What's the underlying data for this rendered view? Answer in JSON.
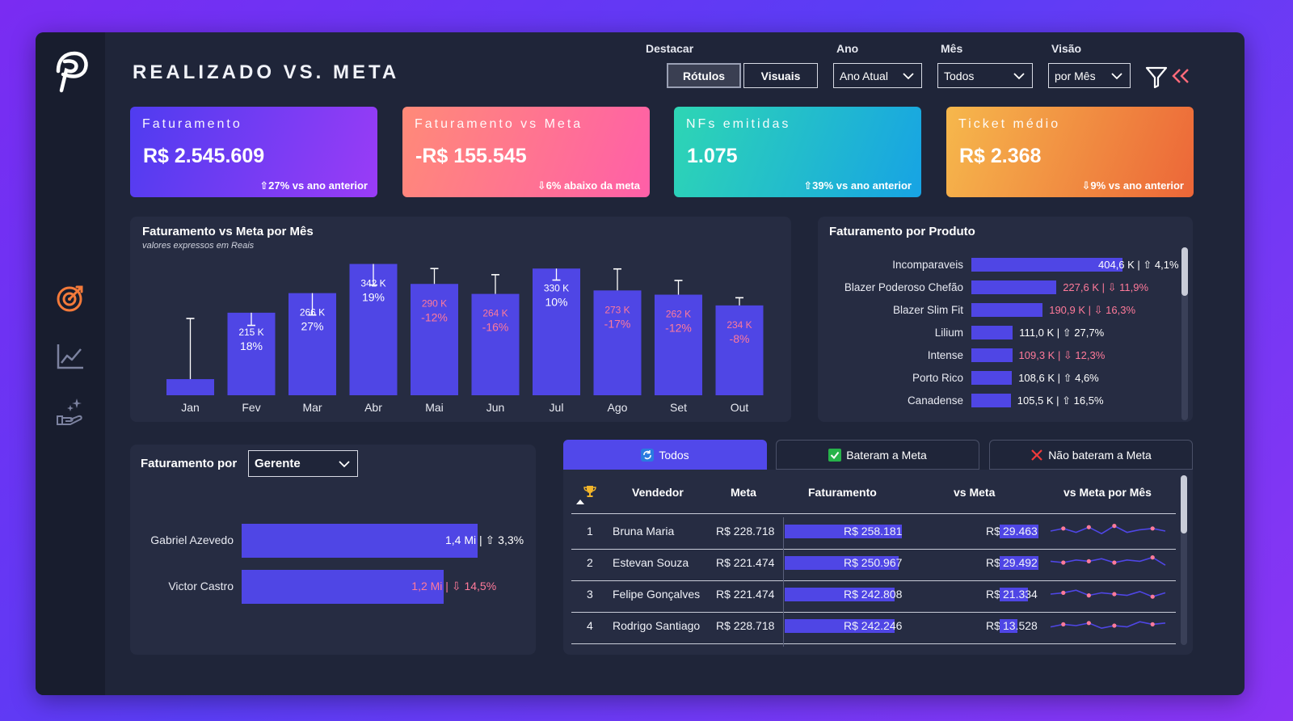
{
  "title": "REALIZADO VS. META",
  "filters": {
    "destacar_label": "Destacar",
    "rotulos": "Rótulos",
    "visuais": "Visuais",
    "ano_label": "Ano",
    "ano_value": "Ano Atual",
    "mes_label": "Mês",
    "mes_value": "Todos",
    "visao_label": "Visão",
    "visao_value": "por Mês"
  },
  "kpis": [
    {
      "title": "Faturamento",
      "value": "R$ 2.545.609",
      "sub": "⇧27% vs ano anterior"
    },
    {
      "title": "Faturamento vs Meta",
      "value": "-R$ 155.545",
      "sub": "⇩6% abaixo da meta"
    },
    {
      "title": "NFs emitidas",
      "value": "1.075",
      "sub": "⇧39% vs ano anterior"
    },
    {
      "title": "Ticket médio",
      "value": "R$ 2.368",
      "sub": "⇩9% vs ano anterior"
    }
  ],
  "monthly": {
    "title": "Faturamento vs Meta por Mês",
    "subtitle": "valores expressos em Reais"
  },
  "chart_data": {
    "type": "bar",
    "title": "Faturamento vs Meta por Mês",
    "categories": [
      "Jan",
      "Fev",
      "Mar",
      "Abr",
      "Mai",
      "Jun",
      "Jul",
      "Ago",
      "Set",
      "Out"
    ],
    "values": [
      42,
      215,
      266,
      342,
      290,
      264,
      330,
      273,
      262,
      234
    ],
    "meta": [
      200,
      182,
      209,
      287,
      330,
      314,
      300,
      329,
      299,
      254
    ],
    "labels": [
      "",
      "215 K",
      "266 K",
      "342 K",
      "290 K",
      "264 K",
      "330 K",
      "273 K",
      "262 K",
      "234 K"
    ],
    "pct": [
      "",
      "18%",
      "27%",
      "19%",
      "-12%",
      "-16%",
      "10%",
      "-17%",
      "-12%",
      "-8%"
    ],
    "positive": [
      true,
      true,
      true,
      true,
      false,
      false,
      true,
      false,
      false,
      false
    ]
  },
  "produto": {
    "title": "Faturamento por Produto",
    "items": [
      {
        "name": "Incomparaveis",
        "value": 404.6,
        "label": "404,6 K | ⇧ 4,1%",
        "positive": true
      },
      {
        "name": "Blazer Poderoso Chefão",
        "value": 227.6,
        "label": "227,6 K | ⇩ 11,9%",
        "positive": false
      },
      {
        "name": "Blazer Slim Fit",
        "value": 190.9,
        "label": "190,9 K | ⇩ 16,3%",
        "positive": false
      },
      {
        "name": "Lilium",
        "value": 111.0,
        "label": "111,0 K | ⇧ 27,7%",
        "positive": true
      },
      {
        "name": "Intense",
        "value": 109.3,
        "label": "109,3 K | ⇩ 12,3%",
        "positive": false
      },
      {
        "name": "Porto Rico",
        "value": 108.6,
        "label": "108,6 K | ⇧ 4,6%",
        "positive": true
      },
      {
        "name": "Canadense",
        "value": 105.5,
        "label": "105,5 K | ⇧ 16,5%",
        "positive": true
      }
    ]
  },
  "gerente": {
    "label": "Faturamento por",
    "select": "Gerente",
    "items": [
      {
        "name": "Gabriel Azevedo",
        "value": 1.4,
        "label": "1,4 Mi | ⇧ 3,3%",
        "positive": true
      },
      {
        "name": "Victor Castro",
        "value": 1.2,
        "label": "1,2 Mi | ⇩ 14,5%",
        "positive": false
      }
    ]
  },
  "tabs": [
    "Todos",
    "Bateram a Meta",
    "Não bateram a Meta"
  ],
  "table": {
    "headers": [
      "Vendedor",
      "Meta",
      "Faturamento",
      "vs Meta",
      "vs Meta por Mês"
    ],
    "rows": [
      {
        "rank": "1",
        "name": "Bruna Maria",
        "meta": "R$ 228.718",
        "fat": "R$ 258.181",
        "fat_v": 258181,
        "prefix": "R$",
        "vs": "29.463",
        "vs_v": 29463,
        "spark": [
          5,
          7,
          4,
          8,
          3,
          9,
          4,
          6,
          7,
          5
        ]
      },
      {
        "rank": "2",
        "name": "Estevan Souza",
        "meta": "R$ 221.474",
        "fat": "R$ 250.967",
        "fat_v": 250967,
        "prefix": "R$",
        "vs": "29.492",
        "vs_v": 29492,
        "spark": [
          6,
          5,
          7,
          6,
          8,
          5,
          7,
          6,
          9,
          3
        ]
      },
      {
        "rank": "3",
        "name": "Felipe Gonçalves",
        "meta": "R$ 221.474",
        "fat": "R$ 242.808",
        "fat_v": 242808,
        "prefix": "R$",
        "vs": "21.334",
        "vs_v": 21334,
        "spark": [
          5,
          6,
          8,
          4,
          6,
          5,
          4,
          7,
          3,
          6
        ]
      },
      {
        "rank": "4",
        "name": "Rodrigo Santiago",
        "meta": "R$ 228.718",
        "fat": "R$ 242.246",
        "fat_v": 242246,
        "prefix": "R$",
        "vs": "13.528",
        "vs_v": 13528,
        "spark": [
          4,
          6,
          5,
          7,
          3,
          5,
          4,
          8,
          6,
          7
        ]
      }
    ]
  },
  "colors": {
    "bar": "#4f46e5",
    "negative": "#ff7a9a",
    "card1": [
      "#5a3df0",
      "#8a3cf5"
    ],
    "card2": [
      "#ff7f7f",
      "#ff5fa8"
    ],
    "card3": [
      "#2cd1b8",
      "#1aa6e0"
    ],
    "card4": [
      "#f5b04a",
      "#ee6a3a"
    ]
  }
}
